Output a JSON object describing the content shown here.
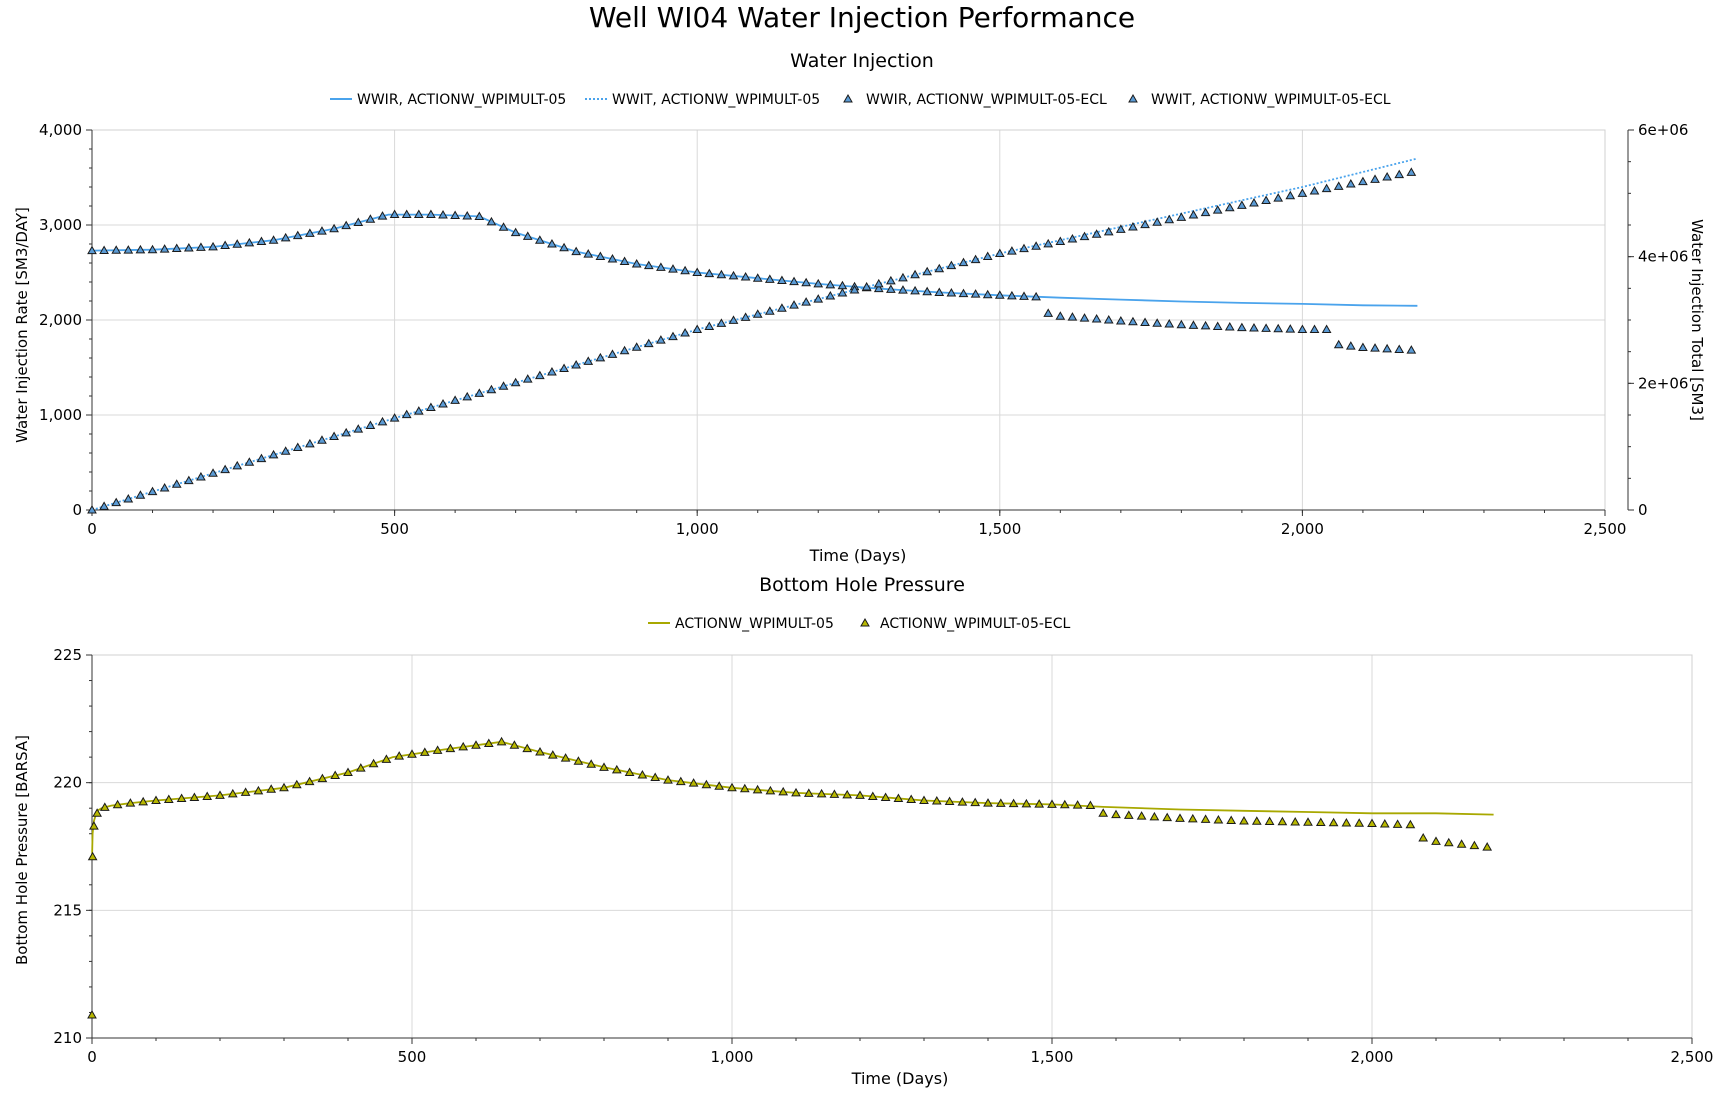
{
  "page": {
    "title": "Well WI04 Water Injection Performance"
  },
  "colors": {
    "wwir_line": "#4aa3ec",
    "wwit_line": "#4aa3ec",
    "ecl_marker_fill": "#5b9bd5",
    "bhp_line": "#a8a800",
    "bhp_marker_fill": "#b8b800",
    "marker_stroke": "#1a1a1a",
    "grid": "#d9d9d9"
  },
  "chart_data": [
    {
      "type": "line",
      "title": "Water Injection",
      "xlabel": "Time (Days)",
      "ylabel": "Water Injection Rate [SM3/DAY]",
      "y2label": "Water Injection Total [SM3]",
      "xlim": [
        0,
        2500
      ],
      "ylim": [
        0,
        4000
      ],
      "y2lim": [
        0,
        6000000
      ],
      "xticks": [
        "0",
        "500",
        "1,000",
        "1,500",
        "2,000",
        "2,500"
      ],
      "yticks": [
        "0",
        "1,000",
        "2,000",
        "3,000",
        "4,000"
      ],
      "y2ticks": [
        "0",
        "2e+06",
        "4e+06",
        "6e+06"
      ],
      "grid": true,
      "legend": "top",
      "legend_items": [
        {
          "label": "WWIR, ACTIONW_WPIMULT-05",
          "style": "line"
        },
        {
          "label": "WWIT, ACTIONW_WPIMULT-05",
          "style": "dotted"
        },
        {
          "label": "WWIR, ACTIONW_WPIMULT-05-ECL",
          "style": "marker"
        },
        {
          "label": "WWIT, ACTIONW_WPIMULT-05-ECL",
          "style": "marker"
        }
      ],
      "wwir_sim": {
        "x": [
          0,
          100,
          200,
          300,
          400,
          490,
          560,
          640,
          700,
          800,
          900,
          1000,
          1100,
          1200,
          1300,
          1400,
          1500,
          1600,
          1700,
          1800,
          1900,
          2000,
          2100,
          2190
        ],
        "y": [
          2730,
          2740,
          2770,
          2840,
          2960,
          3110,
          3110,
          3090,
          2920,
          2720,
          2590,
          2500,
          2440,
          2380,
          2330,
          2290,
          2260,
          2235,
          2215,
          2195,
          2180,
          2170,
          2155,
          2150
        ]
      },
      "wwit_sim": {
        "x": [
          0,
          500,
          1000,
          1500,
          2000,
          2190
        ],
        "y": [
          0,
          1450000,
          2850000,
          4050000,
          5100000,
          5550000
        ]
      },
      "wwir_ecl": {
        "x": [
          0,
          100,
          200,
          300,
          400,
          490,
          560,
          640,
          700,
          800,
          900,
          1000,
          1100,
          1200,
          1300,
          1400,
          1500,
          1570,
          1580,
          1600,
          1700,
          1800,
          1900,
          2000,
          2050,
          2060,
          2100,
          2190
        ],
        "y": [
          2730,
          2740,
          2770,
          2840,
          2960,
          3110,
          3110,
          3090,
          2920,
          2720,
          2590,
          2500,
          2440,
          2380,
          2330,
          2290,
          2260,
          2240,
          2070,
          2040,
          1990,
          1950,
          1920,
          1900,
          1900,
          1740,
          1710,
          1680
        ]
      },
      "wwit_ecl": {
        "x": [
          0,
          500,
          1000,
          1500,
          2000,
          2190
        ],
        "y": [
          0,
          1450000,
          2850000,
          4050000,
          5000000,
          5350000
        ]
      }
    },
    {
      "type": "line",
      "title": "Bottom Hole Pressure",
      "xlabel": "Time (Days)",
      "ylabel": "Bottom Hole Pressure [BARSA]",
      "xlim": [
        0,
        2500
      ],
      "ylim": [
        210,
        225
      ],
      "xticks": [
        "0",
        "500",
        "1,000",
        "1,500",
        "2,000",
        "2,500"
      ],
      "yticks": [
        "210",
        "215",
        "220",
        "225"
      ],
      "grid": true,
      "legend": "top",
      "legend_items": [
        {
          "label": "ACTIONW_WPIMULT-05",
          "style": "line"
        },
        {
          "label": "ACTIONW_WPIMULT-05-ECL",
          "style": "marker"
        }
      ],
      "bhp_sim": {
        "x": [
          0,
          1,
          3,
          8,
          15,
          30,
          60,
          100,
          200,
          300,
          400,
          470,
          550,
          640,
          700,
          800,
          900,
          1000,
          1100,
          1200,
          1300,
          1400,
          1500,
          1580,
          1700,
          1800,
          1900,
          2000,
          2100,
          2190
        ],
        "y": [
          217.0,
          218.0,
          218.5,
          218.9,
          219.0,
          219.1,
          219.2,
          219.3,
          219.5,
          219.8,
          220.4,
          221.0,
          221.3,
          221.6,
          221.2,
          220.6,
          220.1,
          219.8,
          219.6,
          219.5,
          219.3,
          219.2,
          219.15,
          219.05,
          218.95,
          218.9,
          218.85,
          218.8,
          218.8,
          218.75
        ]
      },
      "bhp_ecl": {
        "x": [
          0,
          3,
          8,
          15,
          30,
          60,
          100,
          200,
          300,
          400,
          470,
          550,
          640,
          700,
          800,
          900,
          1000,
          1100,
          1200,
          1300,
          1400,
          1500,
          1570,
          1580,
          1600,
          1700,
          1800,
          1900,
          2000,
          2060,
          2070,
          2100,
          2190
        ],
        "y": [
          210.9,
          218.3,
          218.8,
          219.0,
          219.1,
          219.2,
          219.3,
          219.5,
          219.8,
          220.4,
          221.0,
          221.3,
          221.6,
          221.2,
          220.6,
          220.1,
          219.8,
          219.6,
          219.5,
          219.3,
          219.2,
          219.15,
          219.1,
          218.8,
          218.75,
          218.6,
          218.5,
          218.45,
          218.4,
          218.35,
          217.9,
          217.7,
          217.45
        ]
      }
    }
  ]
}
